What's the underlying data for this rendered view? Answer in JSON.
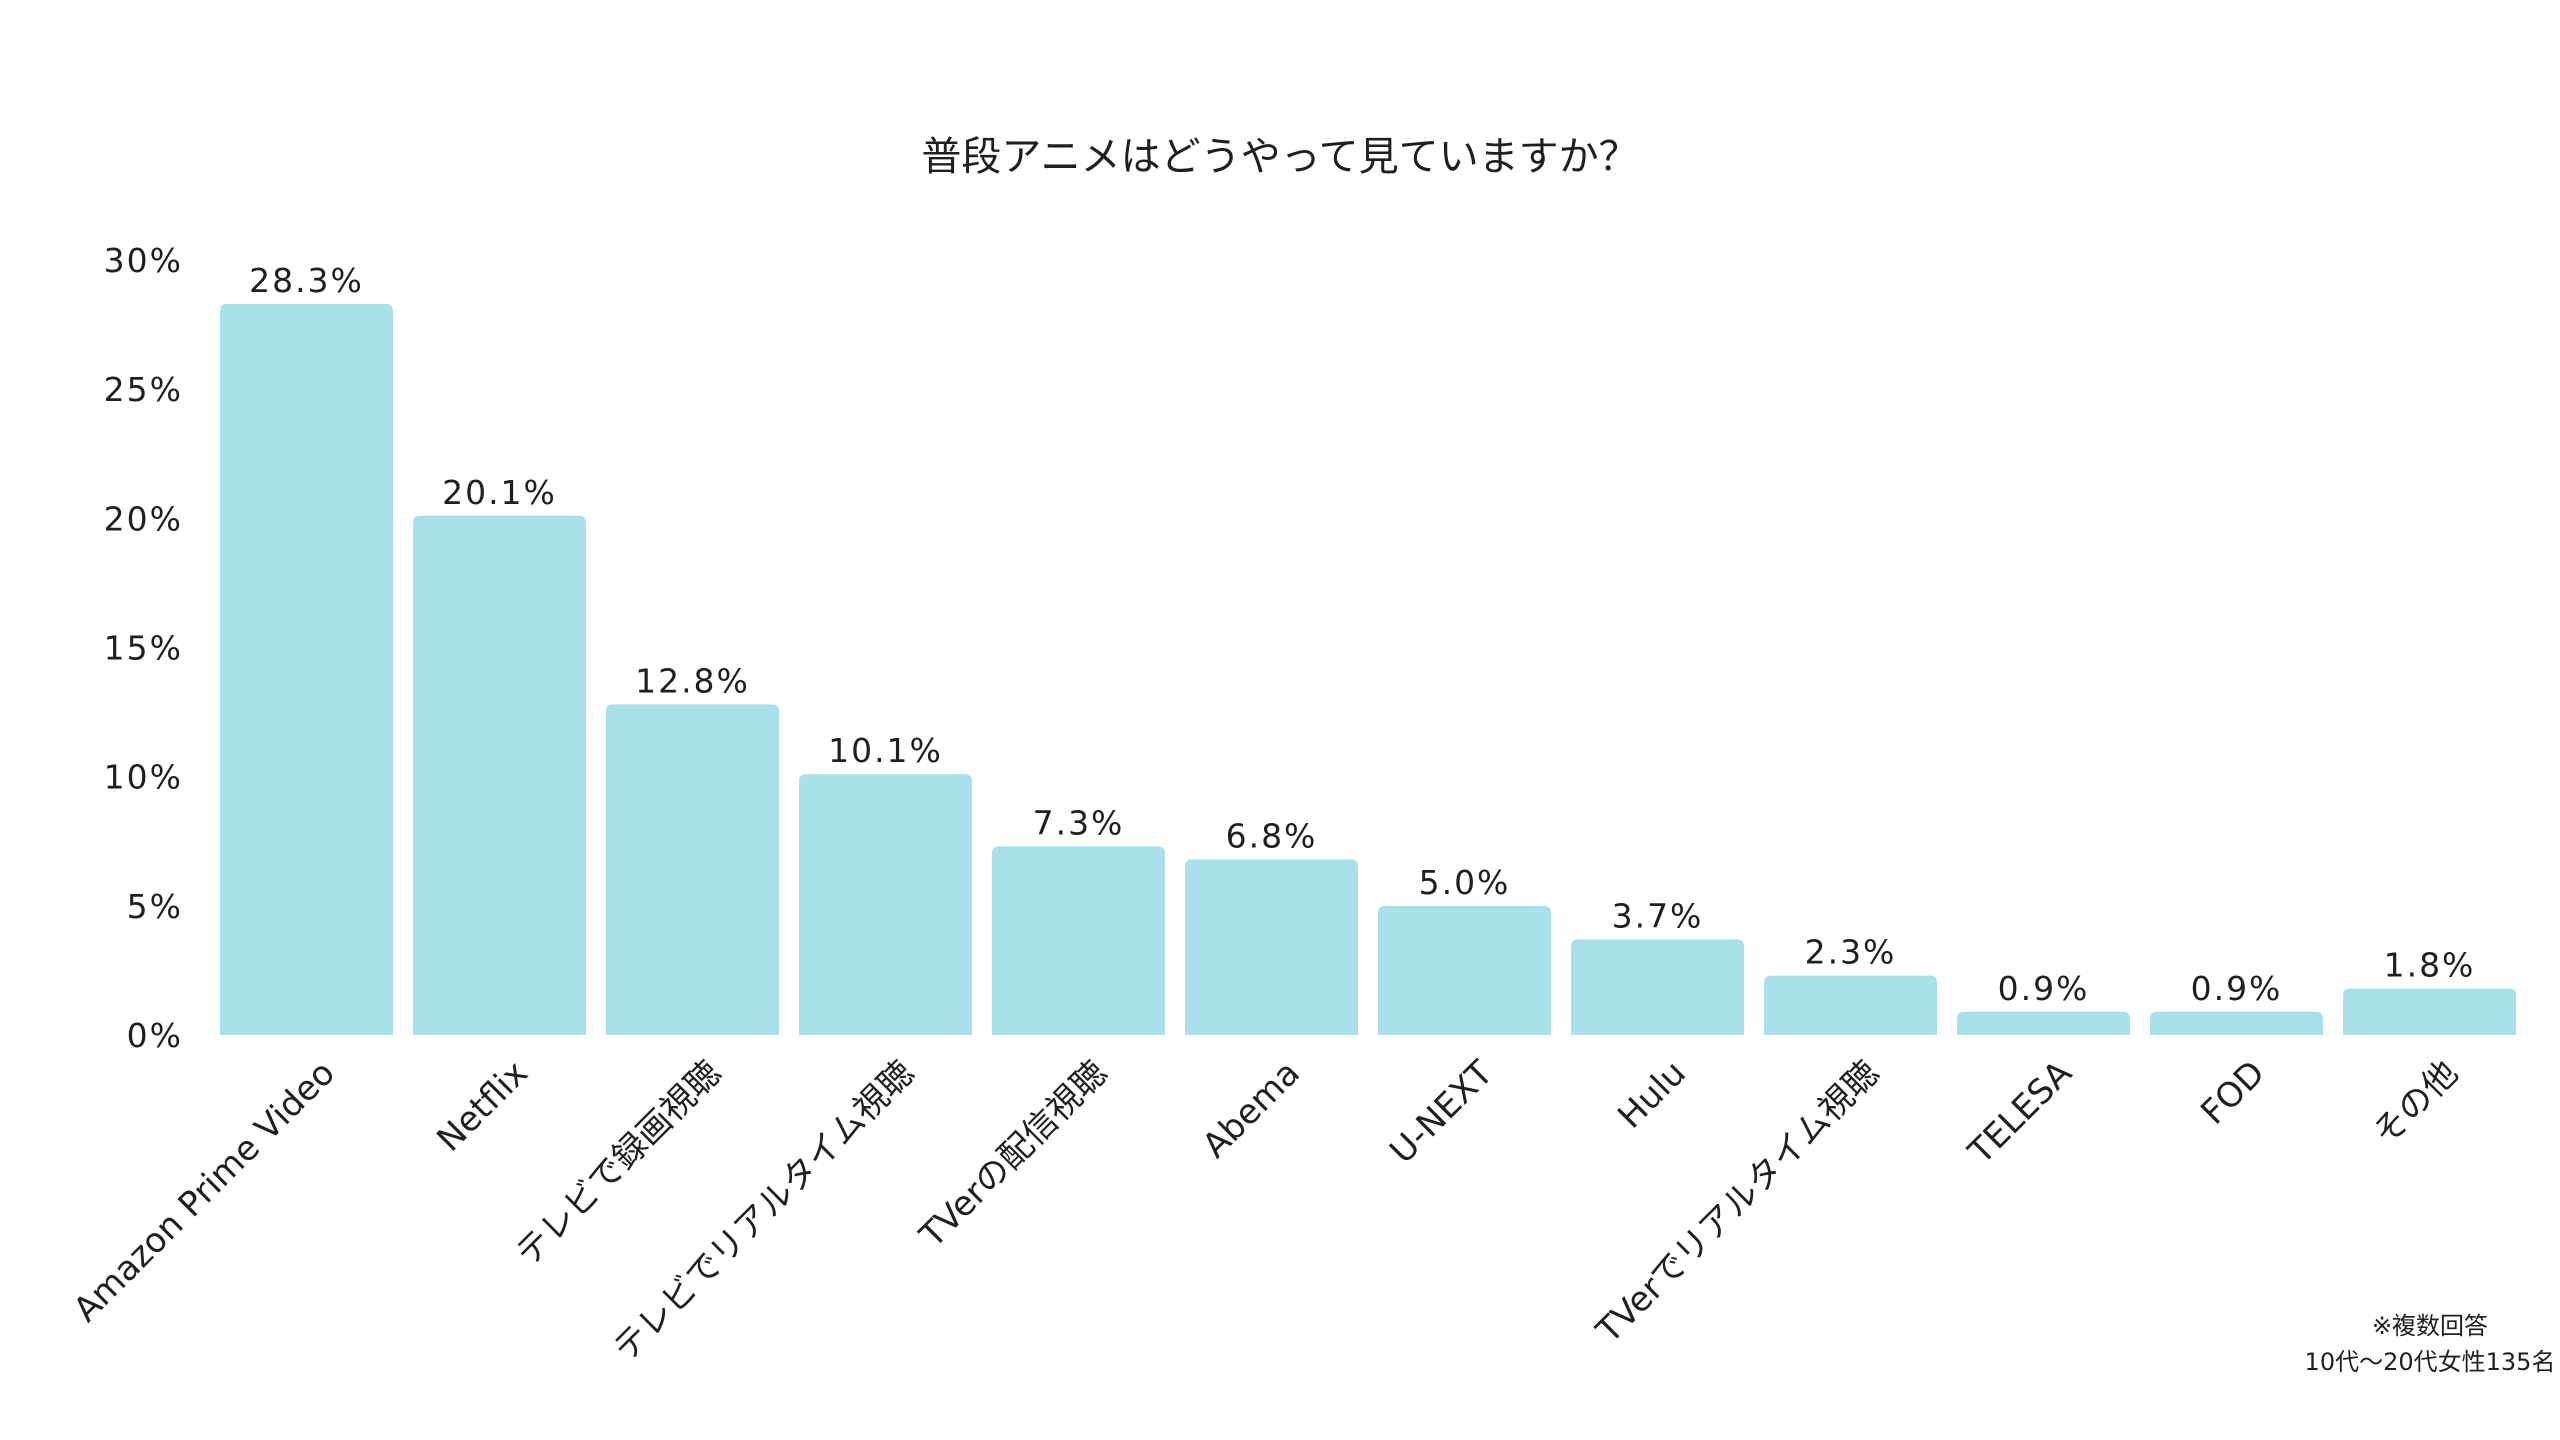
{
  "chart_data": {
    "type": "bar",
    "title": "普段アニメはどうやって見ていますか？",
    "categories": [
      "Amazon Prime Video",
      "Netflix",
      "テレビで録画視聴",
      "テレビでリアルタイム視聴",
      "TVerの配信視聴",
      "Abema",
      "U-NEXT",
      "Hulu",
      "TVerでリアルタイム視聴",
      "TELESA",
      "FOD",
      "その他"
    ],
    "values": [
      28.3,
      20.1,
      12.8,
      10.1,
      7.3,
      6.8,
      5.0,
      3.7,
      2.3,
      0.9,
      0.9,
      1.8
    ],
    "value_labels": [
      "28.3%",
      "20.1%",
      "12.8%",
      "10.1%",
      "7.3%",
      "6.8%",
      "5.0%",
      "3.7%",
      "2.3%",
      "0.9%",
      "0.9%",
      "1.8%"
    ],
    "ylim": [
      0,
      30
    ],
    "yticks": [
      0,
      5,
      10,
      15,
      20,
      25,
      30
    ],
    "ytick_labels": [
      "0%",
      "5%",
      "10%",
      "15%",
      "20%",
      "25%",
      "30%"
    ],
    "xlabel": "",
    "ylabel": "",
    "grid": false,
    "bar_color": "#a9e0ea",
    "notes": [
      "※複数回答",
      "10代〜20代女性135名"
    ]
  }
}
